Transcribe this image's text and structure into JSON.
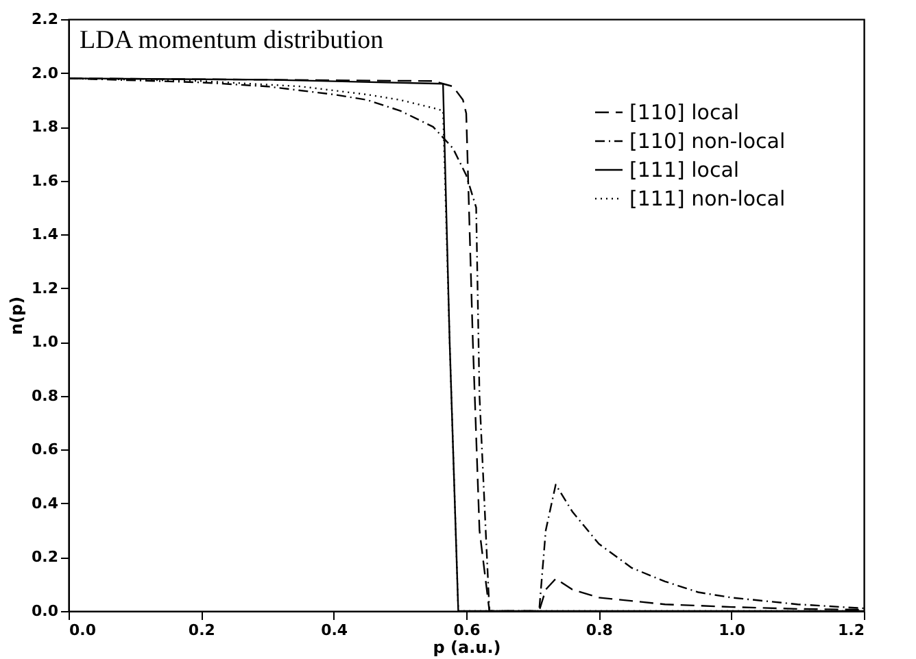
{
  "chart_data": {
    "type": "line",
    "title": "LDA momentum distribution",
    "xlabel": "p (a.u.)",
    "ylabel": "n(p)",
    "xlim": [
      0,
      1.2
    ],
    "ylim": [
      0,
      2.2
    ],
    "xticks": [
      {
        "value": 0,
        "label": "0.0"
      },
      0.2,
      0.4,
      0.6,
      0.8,
      {
        "value": 1,
        "label": "1.0"
      },
      1.2
    ],
    "yticks": [
      {
        "value": 0,
        "label": "0.0"
      },
      0.2,
      0.4,
      0.6,
      0.8,
      {
        "value": 1,
        "label": "1.0"
      },
      1.2,
      1.4,
      1.6,
      1.8,
      {
        "value": 2,
        "label": "2.0"
      },
      2.2
    ],
    "grid": false,
    "legend": "top right",
    "marker": "none",
    "series": [
      {
        "name": "[110] local",
        "color": "#000000",
        "line_style": "dashed",
        "x": [
          0,
          0.3,
          0.55,
          0.58,
          0.595,
          0.6,
          0.61,
          0.62,
          0.635,
          0.71,
          0.72,
          0.735,
          0.76,
          0.8,
          0.9,
          1.0,
          1.1,
          1.2
        ],
        "values": [
          1.98,
          1.975,
          1.97,
          1.95,
          1.9,
          1.85,
          1.0,
          0.3,
          0,
          0,
          0.08,
          0.12,
          0.08,
          0.05,
          0.025,
          0.015,
          0.008,
          0.005
        ]
      },
      {
        "name": "[110] non-local",
        "color": "#000000",
        "line_style": "dashdot",
        "x": [
          0,
          0.2,
          0.3,
          0.4,
          0.45,
          0.5,
          0.55,
          0.58,
          0.6,
          0.615,
          0.62,
          0.635,
          0.71,
          0.72,
          0.735,
          0.76,
          0.8,
          0.85,
          0.9,
          0.95,
          1.0,
          1.1,
          1.2
        ],
        "values": [
          1.98,
          1.965,
          1.95,
          1.92,
          1.9,
          1.86,
          1.8,
          1.72,
          1.62,
          1.5,
          0.8,
          0,
          0,
          0.3,
          0.47,
          0.37,
          0.25,
          0.16,
          0.11,
          0.07,
          0.05,
          0.025,
          0.01
        ]
      },
      {
        "name": "[111] local",
        "color": "#000000",
        "line_style": "solid",
        "x": [
          0,
          0.3,
          0.565,
          0.575,
          0.588,
          1.2
        ],
        "values": [
          1.98,
          1.975,
          1.96,
          1.0,
          0,
          0
        ]
      },
      {
        "name": "[111] non-local",
        "color": "#000000",
        "line_style": "dotted",
        "x": [
          0,
          0.2,
          0.35,
          0.45,
          0.5,
          0.55,
          0.565,
          0.575,
          0.588,
          1.2
        ],
        "values": [
          1.98,
          1.97,
          1.95,
          1.92,
          1.9,
          1.87,
          1.86,
          1.0,
          0,
          0
        ]
      }
    ]
  }
}
